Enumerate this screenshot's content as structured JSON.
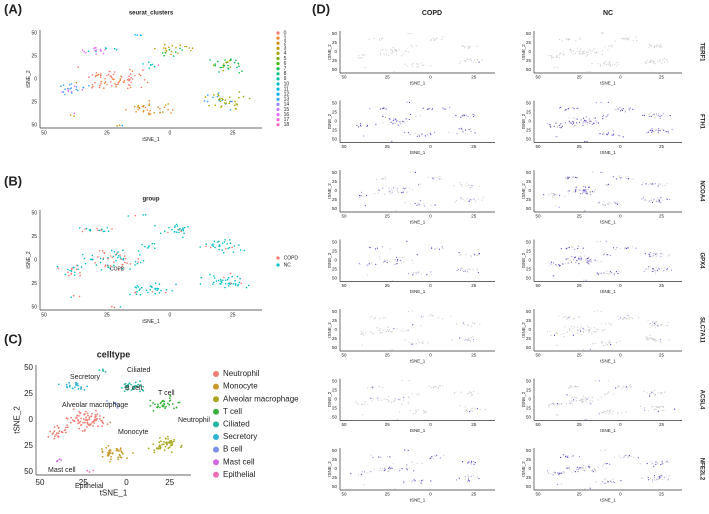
{
  "panels": {
    "A": {
      "label": "(A)",
      "title": "seurat_clusters",
      "x_label": "tSNE_1",
      "y_label": "tSNE_2",
      "xticks": [
        "50",
        "25",
        "0",
        "25"
      ],
      "yticks": [
        "50",
        "25",
        "0",
        "25",
        "50"
      ],
      "legend": [
        "0",
        "1",
        "2",
        "3",
        "4",
        "5",
        "6",
        "7",
        "8",
        "9",
        "10",
        "11",
        "12",
        "13",
        "14",
        "15",
        "16",
        "17",
        "18"
      ],
      "colors": [
        "#F8766D",
        "#EA8331",
        "#D89000",
        "#C09B00",
        "#A3A500",
        "#7CAE00",
        "#39B600",
        "#00BB4E",
        "#00BF7D",
        "#00C1A3",
        "#00BFC4",
        "#00BAE0",
        "#00B0F6",
        "#35A2FF",
        "#9590FF",
        "#C77CFF",
        "#E76BF3",
        "#FA62DB",
        "#FF62BC"
      ]
    },
    "B": {
      "label": "(B)",
      "title": "group",
      "x_label": "tSNE_1",
      "y_label": "tSNE_2",
      "xticks": [
        "50",
        "25",
        "0",
        "25"
      ],
      "yticks": [
        "50",
        "25",
        "0",
        "25",
        "50"
      ],
      "legend": [
        "COPD",
        "NC"
      ],
      "colors": [
        "#F8766D",
        "#00BFC4"
      ],
      "annotations": [
        "COPD"
      ]
    },
    "C": {
      "label": "(C)",
      "title": "celltype",
      "x_label": "tSNE_1",
      "y_label": "tSNE_2",
      "xticks": [
        "50",
        "25",
        "0",
        "25"
      ],
      "yticks": [
        "50",
        "25",
        "0",
        "25",
        "50"
      ],
      "legend": [
        "Neutrophil",
        "Monocyte",
        "Alveolar macrophage",
        "T cell",
        "Ciliated",
        "Secretory",
        "B cell",
        "Mast cell",
        "Epithelial"
      ],
      "colors": [
        "#F07F73",
        "#C89A2A",
        "#A8A820",
        "#36B23A",
        "#22B8A0",
        "#2FB4D8",
        "#7A8FE6",
        "#D06AE0",
        "#EF6FB5"
      ],
      "annotations": [
        "Secretory",
        "Ciliated",
        "B cell",
        "T cell",
        "Neutrophil",
        "Alveolar macrophage",
        "Monocyte",
        "Mast cell",
        "Epithelial"
      ]
    },
    "D": {
      "label": "(D)",
      "columns": [
        "COPD",
        "NC"
      ],
      "genes": [
        "TERF1",
        "FTH1",
        "NCOA4",
        "GPX4",
        "SLC7A11",
        "ACSL4",
        "NFE2L2"
      ],
      "x_label": "tSNE_1",
      "y_label": "tSNE_2",
      "xticks": [
        "50",
        "25",
        "0",
        "25"
      ],
      "yticks": [
        "50",
        "25",
        "0",
        "25",
        "50"
      ]
    }
  }
}
